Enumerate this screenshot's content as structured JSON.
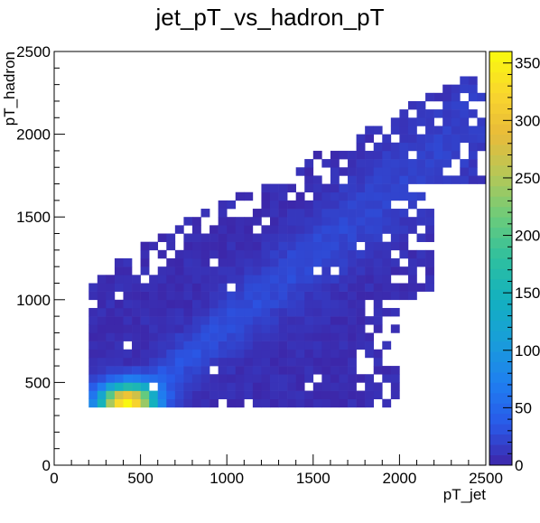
{
  "chart_data": {
    "type": "heatmap",
    "title": "jet_pT_vs_hadron_pT",
    "xlabel": "pT_jet",
    "ylabel": "pT_hadron",
    "xlim": [
      0,
      2500
    ],
    "ylim": [
      0,
      2500
    ],
    "bin_width": 50,
    "x_ticks": [
      {
        "value": 0,
        "label": "0"
      },
      {
        "value": 500,
        "label": "500"
      },
      {
        "value": 1000,
        "label": "1000"
      },
      {
        "value": 1500,
        "label": "1500"
      },
      {
        "value": 2000,
        "label": "2000"
      },
      {
        "value": 2500,
        "label": "2500"
      }
    ],
    "y_ticks": [
      {
        "value": 0,
        "label": "0"
      },
      {
        "value": 500,
        "label": "500"
      },
      {
        "value": 1000,
        "label": "1000"
      },
      {
        "value": 1500,
        "label": "1500"
      },
      {
        "value": 2000,
        "label": "2000"
      },
      {
        "value": 2500,
        "label": "2500"
      }
    ],
    "color_scale": {
      "zlim": [
        0,
        360
      ],
      "ticks": [
        {
          "value": 0,
          "label": "0"
        },
        {
          "value": 50,
          "label": "50"
        },
        {
          "value": 100,
          "label": "100"
        },
        {
          "value": 150,
          "label": "150"
        },
        {
          "value": 200,
          "label": "200"
        },
        {
          "value": 250,
          "label": "250"
        },
        {
          "value": 300,
          "label": "300"
        },
        {
          "value": 350,
          "label": "350"
        }
      ],
      "colors": [
        "#3d26a8",
        "#2959e8",
        "#1f7ff0",
        "#199ed9",
        "#13b0c0",
        "#2ec09f",
        "#6ccb7a",
        "#b4c858",
        "#e8bb3a",
        "#f9d62d",
        "#f9fb0e"
      ]
    },
    "grid": false
  }
}
